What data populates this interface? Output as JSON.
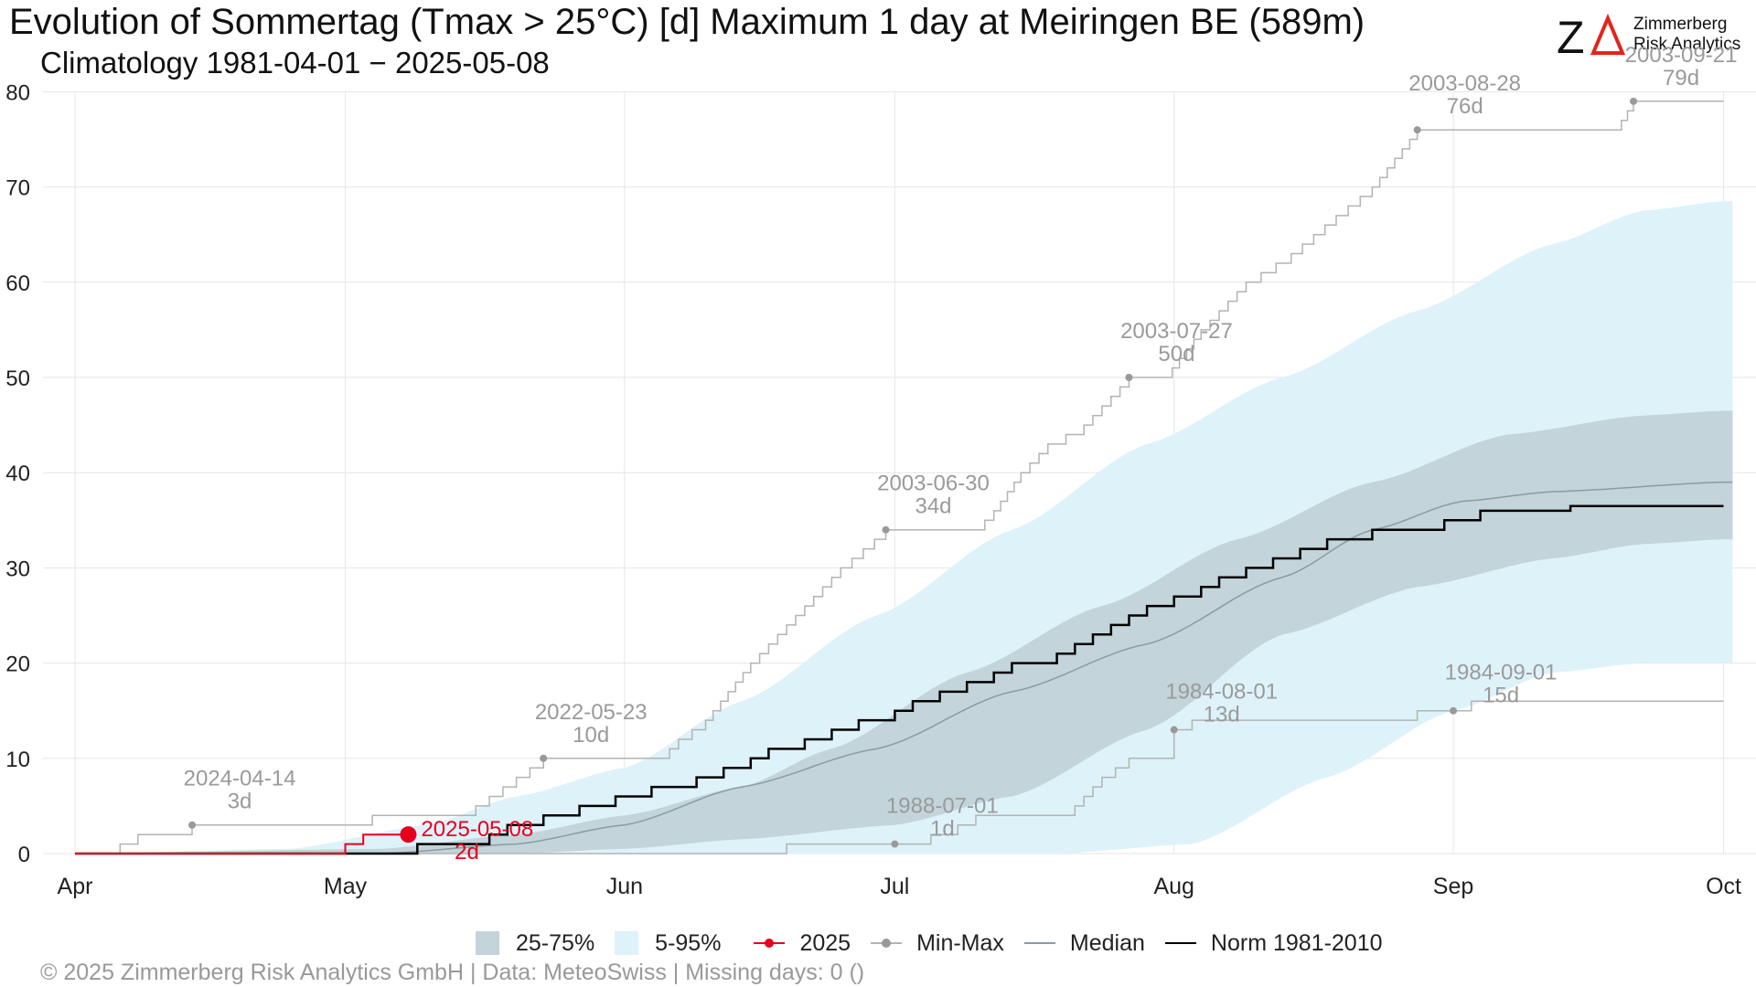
{
  "header": {
    "title": "Evolution of Sommertag (Tmax > 25°C) [d] Maximum 1 day at Meiringen  BE (589m)",
    "subtitle": "Climatology 1981-04-01 − 2025-05-08"
  },
  "logo": {
    "mark": "ZΔ",
    "line1": "Zimmerberg",
    "line2": "Risk Analytics",
    "accent_color": "#e5231b"
  },
  "legend": {
    "iqr": "25-75%",
    "p90": "5-95%",
    "current": "2025",
    "minmax": "Min-Max",
    "median": "Median",
    "norm": "Norm 1981-2010"
  },
  "footer": "©  2025 Zimmerberg Risk Analytics GmbH | Data: MeteoSwiss | Missing days: 0 ()",
  "chart_data": {
    "type": "line",
    "x_unit": "day of year (Apr 1 = 91)",
    "xlim": [
      91,
      275
    ],
    "ylim": [
      0,
      80
    ],
    "y_ticks": [
      0,
      10,
      20,
      30,
      40,
      50,
      60,
      70,
      80
    ],
    "x_ticks": [
      {
        "label": "Apr",
        "doy": 91
      },
      {
        "label": "May",
        "doy": 121
      },
      {
        "label": "Jun",
        "doy": 152
      },
      {
        "label": "Jul",
        "doy": 182
      },
      {
        "label": "Aug",
        "doy": 213
      },
      {
        "label": "Sep",
        "doy": 244
      },
      {
        "label": "Oct",
        "doy": 274
      }
    ],
    "grid": true,
    "colors": {
      "iqr": "#c3d4da",
      "p90": "#def2f9",
      "current": "#e5001e",
      "minmax": "#b3b3b3",
      "minmax_dot": "#999999",
      "median": "#8c9ba2",
      "norm": "#000000",
      "annotation": "#9a9a9a"
    },
    "series": {
      "p5": [
        [
          91,
          0
        ],
        [
          200,
          0
        ],
        [
          215,
          1
        ],
        [
          230,
          8
        ],
        [
          244,
          15
        ],
        [
          255,
          19
        ],
        [
          265,
          20
        ],
        [
          274,
          20
        ]
      ],
      "p25": [
        [
          91,
          0
        ],
        [
          140,
          0
        ],
        [
          152,
          0.5
        ],
        [
          165,
          1.5
        ],
        [
          182,
          3
        ],
        [
          195,
          6
        ],
        [
          210,
          13
        ],
        [
          225,
          23
        ],
        [
          240,
          28
        ],
        [
          255,
          31
        ],
        [
          265,
          32.5
        ],
        [
          274,
          33
        ]
      ],
      "p75": [
        [
          91,
          0
        ],
        [
          125,
          0.5
        ],
        [
          140,
          2
        ],
        [
          152,
          4
        ],
        [
          165,
          7
        ],
        [
          175,
          11
        ],
        [
          190,
          19
        ],
        [
          205,
          26
        ],
        [
          220,
          33
        ],
        [
          235,
          39
        ],
        [
          250,
          44
        ],
        [
          265,
          46
        ],
        [
          274,
          46.5
        ]
      ],
      "p95": [
        [
          91,
          0
        ],
        [
          115,
          0.5
        ],
        [
          130,
          3
        ],
        [
          140,
          6
        ],
        [
          152,
          9
        ],
        [
          165,
          16
        ],
        [
          180,
          25
        ],
        [
          195,
          34
        ],
        [
          210,
          43
        ],
        [
          225,
          50
        ],
        [
          240,
          57
        ],
        [
          255,
          64
        ],
        [
          265,
          67.5
        ],
        [
          274,
          68.5
        ]
      ],
      "max_path": [
        [
          91,
          0
        ],
        [
          96,
          0
        ],
        [
          96,
          1
        ],
        [
          98,
          1
        ],
        [
          98,
          2
        ],
        [
          104,
          2
        ],
        [
          104,
          3
        ],
        [
          120,
          3
        ],
        [
          124,
          4
        ],
        [
          134,
          4
        ],
        [
          137,
          6
        ],
        [
          143,
          10
        ],
        [
          156,
          10
        ],
        [
          158,
          12
        ],
        [
          161,
          14
        ],
        [
          166,
          20
        ],
        [
          172,
          26
        ],
        [
          176,
          30
        ],
        [
          181,
          34
        ],
        [
          191,
          34
        ],
        [
          193,
          36
        ],
        [
          196,
          40
        ],
        [
          199,
          43
        ],
        [
          203,
          45
        ],
        [
          206,
          48
        ],
        [
          208,
          50
        ],
        [
          212,
          50
        ],
        [
          216,
          55
        ],
        [
          221,
          60
        ],
        [
          226,
          63
        ],
        [
          231,
          67
        ],
        [
          235,
          70
        ],
        [
          240,
          76
        ],
        [
          262,
          76
        ],
        [
          264,
          79
        ],
        [
          274,
          79
        ]
      ],
      "max_markers": [
        {
          "x": 104,
          "y": 3,
          "date": "2024-04-14",
          "days": "3d"
        },
        {
          "x": 143,
          "y": 10,
          "date": "2022-05-23",
          "days": "10d"
        },
        {
          "x": 181,
          "y": 34,
          "date": "2003-06-30",
          "days": "34d"
        },
        {
          "x": 208,
          "y": 50,
          "date": "2003-07-27",
          "days": "50d"
        },
        {
          "x": 240,
          "y": 76,
          "date": "2003-08-28",
          "days": "76d"
        },
        {
          "x": 264,
          "y": 79,
          "date": "2003-09-21",
          "days": "79d"
        }
      ],
      "min_path": [
        [
          91,
          0
        ],
        [
          170,
          0
        ],
        [
          170,
          1
        ],
        [
          182,
          1
        ],
        [
          186,
          2
        ],
        [
          189,
          3
        ],
        [
          191,
          4
        ],
        [
          201,
          4
        ],
        [
          205,
          8
        ],
        [
          208,
          10
        ],
        [
          213,
          11
        ],
        [
          213,
          13
        ],
        [
          215,
          14
        ],
        [
          240,
          15
        ],
        [
          246,
          15
        ],
        [
          246,
          16
        ],
        [
          274,
          16
        ]
      ],
      "min_markers": [
        {
          "x": 182,
          "y": 1,
          "date": "1988-07-01",
          "days": "1d"
        },
        {
          "x": 213,
          "y": 13,
          "date": "1984-08-01",
          "days": "13d"
        },
        {
          "x": 244,
          "y": 15,
          "date": "1984-09-01",
          "days": "15d"
        }
      ],
      "median": [
        [
          91,
          0
        ],
        [
          125,
          0
        ],
        [
          140,
          1
        ],
        [
          152,
          3
        ],
        [
          165,
          7
        ],
        [
          180,
          11
        ],
        [
          195,
          17
        ],
        [
          210,
          22
        ],
        [
          225,
          29
        ],
        [
          235,
          34
        ],
        [
          245,
          37
        ],
        [
          255,
          38
        ],
        [
          274,
          39
        ]
      ],
      "norm": [
        [
          91,
          0
        ],
        [
          129,
          0
        ],
        [
          129,
          1
        ],
        [
          135,
          1
        ],
        [
          137,
          2
        ],
        [
          139,
          3
        ],
        [
          143,
          4
        ],
        [
          147,
          5
        ],
        [
          151,
          6
        ],
        [
          155,
          7
        ],
        [
          160,
          8
        ],
        [
          163,
          9
        ],
        [
          166,
          10
        ],
        [
          168,
          11
        ],
        [
          172,
          12
        ],
        [
          175,
          13
        ],
        [
          178,
          14
        ],
        [
          182,
          15
        ],
        [
          184,
          16
        ],
        [
          187,
          17
        ],
        [
          190,
          18
        ],
        [
          193,
          19
        ],
        [
          195,
          20
        ],
        [
          200,
          21
        ],
        [
          202,
          22
        ],
        [
          204,
          23
        ],
        [
          206,
          24
        ],
        [
          208,
          25
        ],
        [
          210,
          26
        ],
        [
          213,
          27
        ],
        [
          216,
          28
        ],
        [
          218,
          29
        ],
        [
          221,
          30
        ],
        [
          224,
          31
        ],
        [
          227,
          32
        ],
        [
          230,
          33
        ],
        [
          235,
          34
        ],
        [
          243,
          35
        ],
        [
          247,
          36
        ],
        [
          257,
          36.5
        ],
        [
          274,
          36.5
        ]
      ],
      "current": [
        [
          91,
          0
        ],
        [
          121,
          0
        ],
        [
          121,
          1
        ],
        [
          123,
          1
        ],
        [
          123,
          2
        ],
        [
          128,
          2
        ]
      ],
      "current_marker": {
        "x": 128,
        "y": 2,
        "date": "2025-05-08",
        "days": "2d"
      }
    }
  }
}
